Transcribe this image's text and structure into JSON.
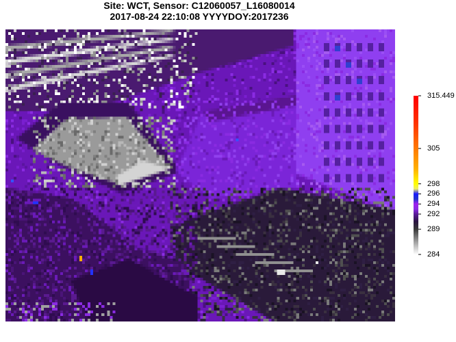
{
  "header": {
    "line1": "Site: WCT, Sensor: C12060057_L16080014",
    "line2": "2017-08-24 22:10:08 YYYYDOY:2017236"
  },
  "colorbar": {
    "min": 284,
    "max": 315.449,
    "ticks": [
      {
        "label": "315.449",
        "value": 315.449
      },
      {
        "label": "305",
        "value": 305
      },
      {
        "label": "298",
        "value": 298
      },
      {
        "label": "296",
        "value": 296
      },
      {
        "label": "294",
        "value": 294
      },
      {
        "label": "292",
        "value": 292
      },
      {
        "label": "289",
        "value": 289
      },
      {
        "label": "284",
        "value": 284
      }
    ],
    "colors": [
      {
        "value": 284,
        "color": "#ffffff"
      },
      {
        "value": 286.5,
        "color": "#a0a0a0"
      },
      {
        "value": 289,
        "color": "#3a3a3a"
      },
      {
        "value": 290.5,
        "color": "#2a1540"
      },
      {
        "value": 292,
        "color": "#5a1a9a"
      },
      {
        "value": 293,
        "color": "#8a2be2"
      },
      {
        "value": 294,
        "color": "#a020f0"
      },
      {
        "value": 295,
        "color": "#2233cc"
      },
      {
        "value": 296,
        "color": "#1a1aff"
      },
      {
        "value": 297,
        "color": "#eeee66"
      },
      {
        "value": 298,
        "color": "#ffff00"
      },
      {
        "value": 301,
        "color": "#ffb000"
      },
      {
        "value": 305,
        "color": "#ff7a00"
      },
      {
        "value": 310,
        "color": "#ff3300"
      },
      {
        "value": 315.449,
        "color": "#ff0000"
      }
    ]
  }
}
